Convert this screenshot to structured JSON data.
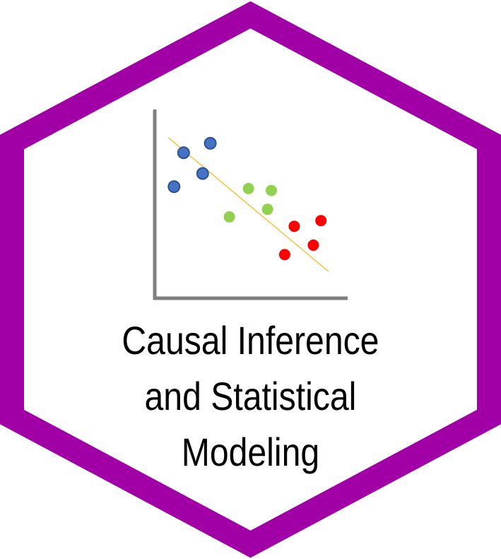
{
  "badge": {
    "border_color": "#a100a6",
    "fill_color": "#ffffff",
    "title_lines": [
      "Causal Inference",
      "and Statistical",
      "Modeling"
    ]
  },
  "figure": {
    "axis_color": "#7f7f7f",
    "trend_line_color": "#f5c242",
    "clusters": [
      {
        "color": "#4472c4",
        "points": [
          [
            1.4,
            7.6
          ],
          [
            2.8,
            8.1
          ],
          [
            2.4,
            6.5
          ],
          [
            0.9,
            5.8
          ]
        ]
      },
      {
        "color": "#92d050",
        "points": [
          [
            4.8,
            5.7
          ],
          [
            5.8,
            4.6
          ],
          [
            6.0,
            5.6
          ],
          [
            3.8,
            4.2
          ]
        ]
      },
      {
        "color": "#ff0000",
        "points": [
          [
            7.2,
            3.7
          ],
          [
            8.6,
            4.0
          ],
          [
            8.2,
            2.7
          ],
          [
            6.7,
            2.2
          ]
        ]
      }
    ],
    "trend_line": [
      [
        0.6,
        8.4
      ],
      [
        9.0,
        1.3
      ]
    ]
  }
}
